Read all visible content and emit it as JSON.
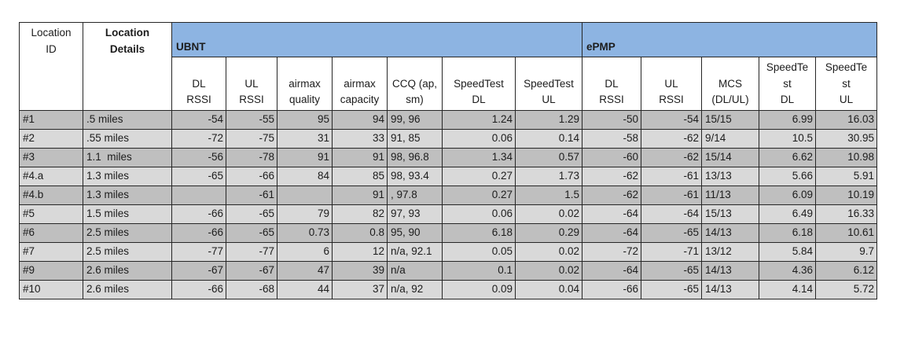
{
  "colors": {
    "header_blue": "#8db4e2",
    "row_dark": "#bfbfbf",
    "row_light": "#d9d9d9",
    "border_color": "#262626"
  },
  "table": {
    "corner": {
      "location_id": "Location\nID",
      "location_details": "Location\nDetails"
    },
    "groups": {
      "ubnt": "UBNT",
      "epmp": "ePMP"
    },
    "columns_ubnt": [
      "DL\nRSSI",
      "UL\nRSSI",
      "airmax\nquality",
      "airmax\ncapacity",
      "CCQ (ap,\nsm)",
      "SpeedTest\nDL",
      "SpeedTest\nUL"
    ],
    "columns_epmp": [
      "DL\nRSSI",
      "UL\nRSSI",
      "MCS\n(DL/UL)",
      "SpeedTe\nst\nDL",
      "SpeedTe\nst\nUL"
    ],
    "rows": [
      {
        "id": "#1",
        "details": ".5 miles",
        "ubnt": [
          "-54",
          "-55",
          "95",
          "94",
          "99, 96",
          "1.24",
          "1.29"
        ],
        "epmp": [
          "-50",
          "-54",
          "15/15",
          "6.99",
          "16.03"
        ]
      },
      {
        "id": "#2",
        "details": ".55 miles",
        "ubnt": [
          "-72",
          "-75",
          "31",
          "33",
          "91, 85",
          "0.06",
          "0.14"
        ],
        "epmp": [
          "-58",
          "-62",
          "9/14",
          "10.5",
          "30.95"
        ]
      },
      {
        "id": "#3",
        "details": "1.1  miles",
        "ubnt": [
          "-56",
          "-78",
          "91",
          "91",
          "98, 96.8",
          "1.34",
          "0.57"
        ],
        "epmp": [
          "-60",
          "-62",
          "15/14",
          "6.62",
          "10.98"
        ]
      },
      {
        "id": "#4.a",
        "details": "1.3 miles",
        "ubnt": [
          "-65",
          "-66",
          "84",
          "85",
          "98, 93.4",
          "0.27",
          "1.73"
        ],
        "epmp": [
          "-62",
          "-61",
          "13/13",
          "5.66",
          "5.91"
        ]
      },
      {
        "id": "#4.b",
        "details": "1.3 miles",
        "ubnt": [
          "",
          "-61",
          "",
          "91",
          ", 97.8",
          "0.27",
          "1.5"
        ],
        "epmp": [
          "-62",
          "-61",
          "11/13",
          "6.09",
          "10.19"
        ]
      },
      {
        "id": "#5",
        "details": "1.5 miles",
        "ubnt": [
          "-66",
          "-65",
          "79",
          "82",
          "97, 93",
          "0.06",
          "0.02"
        ],
        "epmp": [
          "-64",
          "-64",
          "15/13",
          "6.49",
          "16.33"
        ]
      },
      {
        "id": "#6",
        "details": "2.5 miles",
        "ubnt": [
          "-66",
          "-65",
          "0.73",
          "0.8",
          "95, 90",
          "6.18",
          "0.29"
        ],
        "epmp": [
          "-64",
          "-65",
          "14/13",
          "6.18",
          "10.61"
        ]
      },
      {
        "id": "#7",
        "details": "2.5 miles",
        "ubnt": [
          "-77",
          "-77",
          "6",
          "12",
          "n/a, 92.1",
          "0.05",
          "0.02"
        ],
        "epmp": [
          "-72",
          "-71",
          "13/12",
          "5.84",
          "9.7"
        ]
      },
      {
        "id": "#9",
        "details": "2.6 miles",
        "ubnt": [
          "-67",
          "-67",
          "47",
          "39",
          "n/a",
          "0.1",
          "0.02"
        ],
        "epmp": [
          "-64",
          "-65",
          "14/13",
          "4.36",
          "6.12"
        ]
      },
      {
        "id": "#10",
        "details": "2.6 miles",
        "ubnt": [
          "-66",
          "-68",
          "44",
          "37",
          "n/a, 92",
          "0.09",
          "0.04"
        ],
        "epmp": [
          "-66",
          "-65",
          "14/13",
          "4.14",
          "5.72"
        ]
      }
    ]
  }
}
